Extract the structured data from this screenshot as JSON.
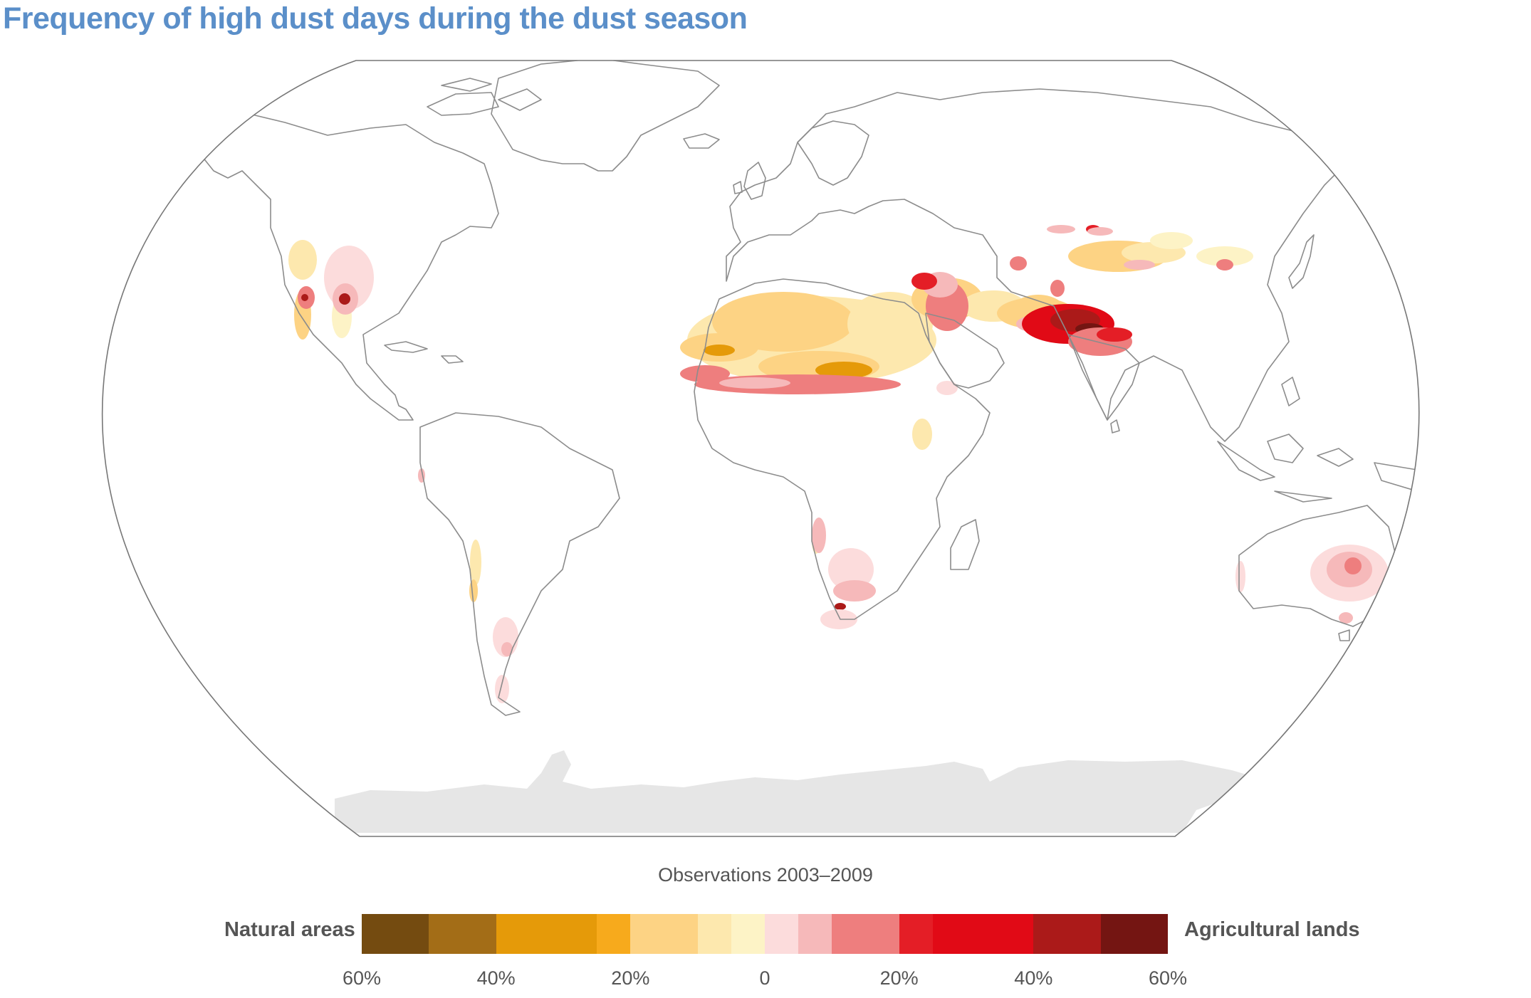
{
  "title": "Frequency of high dust days during the dust season",
  "subtitle": "Observations 2003–2009",
  "legend": {
    "left_label": "Natural areas",
    "right_label": "Agricultural lands",
    "tick_labels": [
      "60%",
      "40%",
      "20%",
      "0",
      "20%",
      "40%",
      "60%"
    ],
    "tick_values": [
      -60,
      -40,
      -20,
      0,
      20,
      40,
      60
    ],
    "bins": [
      {
        "from": -60,
        "to": -50,
        "color": "#744b10"
      },
      {
        "from": -50,
        "to": -40,
        "color": "#a36d17"
      },
      {
        "from": -40,
        "to": -25,
        "color": "#e59a09"
      },
      {
        "from": -25,
        "to": -20,
        "color": "#f7aa1c"
      },
      {
        "from": -20,
        "to": -10,
        "color": "#fdd384"
      },
      {
        "from": -10,
        "to": -5,
        "color": "#fde8ae"
      },
      {
        "from": -5,
        "to": 0,
        "color": "#fdf3c6"
      },
      {
        "from": 0,
        "to": 5,
        "color": "#fcdcdc"
      },
      {
        "from": 5,
        "to": 10,
        "color": "#f6b9ba"
      },
      {
        "from": 10,
        "to": 20,
        "color": "#ee7e7e"
      },
      {
        "from": 20,
        "to": 25,
        "color": "#e41e26"
      },
      {
        "from": 25,
        "to": 40,
        "color": "#e10a16"
      },
      {
        "from": 40,
        "to": 50,
        "color": "#ab1a19"
      },
      {
        "from": 50,
        "to": 60,
        "color": "#741512"
      }
    ]
  },
  "colors": {
    "title": "#5b8fc9",
    "coastline": "#8c8c8c",
    "antarctica": "#e6e6e6",
    "map_frame": "#777777"
  }
}
